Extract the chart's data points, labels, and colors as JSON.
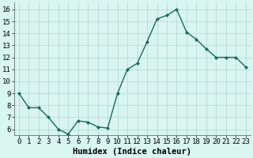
{
  "x": [
    0,
    1,
    2,
    3,
    4,
    5,
    6,
    7,
    8,
    9,
    10,
    11,
    12,
    13,
    14,
    15,
    16,
    17,
    18,
    19,
    20,
    21,
    22,
    23
  ],
  "y": [
    9.0,
    7.8,
    7.8,
    7.0,
    6.0,
    5.6,
    6.7,
    6.6,
    6.2,
    6.1,
    9.0,
    11.0,
    11.5,
    13.3,
    15.2,
    15.5,
    16.0,
    14.1,
    13.5,
    12.7,
    12.0,
    12.0,
    12.0,
    11.2
  ],
  "line_color": "#1a6b5a",
  "marker": "D",
  "marker_size": 2.0,
  "bg_color": "#d8f5f0",
  "grid_color": "#b0d8d0",
  "xlabel": "Humidex (Indice chaleur)",
  "ylim": [
    5.5,
    16.6
  ],
  "xlim": [
    -0.5,
    23.5
  ],
  "yticks": [
    6,
    7,
    8,
    9,
    10,
    11,
    12,
    13,
    14,
    15,
    16
  ],
  "xticks": [
    0,
    1,
    2,
    3,
    4,
    5,
    6,
    7,
    8,
    9,
    10,
    11,
    12,
    13,
    14,
    15,
    16,
    17,
    18,
    19,
    20,
    21,
    22,
    23
  ],
  "xlabel_fontsize": 7.5,
  "tick_fontsize": 6.5,
  "linewidth": 1.0
}
